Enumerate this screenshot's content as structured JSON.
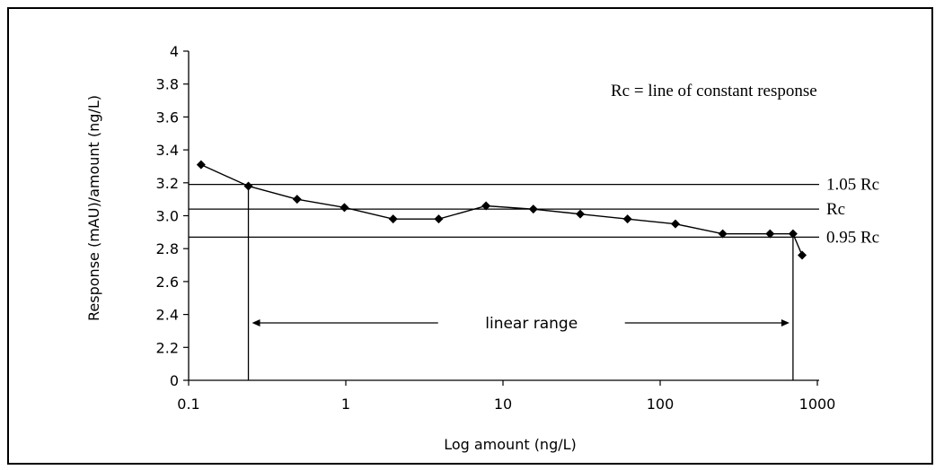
{
  "chart_data": {
    "type": "line",
    "xscale": "log",
    "xlabel": "Log amount (ng/L)",
    "ylabel": "Response (mAU)/amount (ng/L)",
    "x_ticks": [
      "0.1",
      "1",
      "10",
      "100",
      "1000"
    ],
    "y_ticks": [
      "0",
      "2.2",
      "2.4",
      "2.6",
      "2.8",
      "3.0",
      "3.2",
      "3.4",
      "3.6",
      "3.8",
      "4"
    ],
    "y_axis_break": "0 to 2.2",
    "x": [
      0.12,
      0.24,
      0.49,
      0.98,
      2.0,
      3.9,
      7.8,
      15.6,
      31,
      62,
      125,
      250,
      500,
      700,
      800
    ],
    "y": [
      3.31,
      3.18,
      3.1,
      3.05,
      2.98,
      2.98,
      3.06,
      3.04,
      3.01,
      2.98,
      2.95,
      2.89,
      2.89,
      2.89,
      2.76
    ],
    "reference_lines": [
      {
        "label": "1.05 Rc",
        "y": 3.19
      },
      {
        "label": "Rc",
        "y": 3.04
      },
      {
        "label": "0.95 Rc",
        "y": 2.87
      }
    ],
    "linear_range": {
      "label": "linear range",
      "x_start": 0.24,
      "x_end": 700
    },
    "annotation": "Rc = line of constant response",
    "grid": false,
    "legend": "none",
    "colors": {
      "line": "#000000",
      "marker": "#000000"
    }
  }
}
